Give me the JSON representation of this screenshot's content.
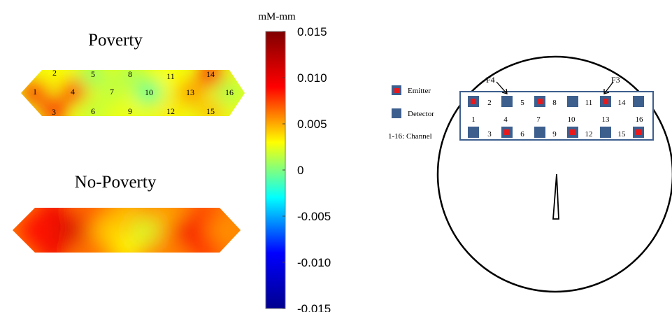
{
  "colors": {
    "emitter_fill": "#e8191c",
    "detector_fill": "#3d5f8e",
    "montage_border": "#3d5f8e",
    "head_outline": "#000000"
  },
  "maps": {
    "poverty": {
      "title": "Poverty",
      "channels": [
        {
          "label": "1",
          "value": 0.008
        },
        {
          "label": "2",
          "value": 0.003
        },
        {
          "label": "3",
          "value": 0.008
        },
        {
          "label": "4",
          "value": 0.0075
        },
        {
          "label": "5",
          "value": 0.0005
        },
        {
          "label": "6",
          "value": 0.0015
        },
        {
          "label": "7",
          "value": 0.0015
        },
        {
          "label": "8",
          "value": 0.001
        },
        {
          "label": "9",
          "value": 0.0025
        },
        {
          "label": "10",
          "value": -0.001
        },
        {
          "label": "11",
          "value": 0.003
        },
        {
          "label": "12",
          "value": 0.0035
        },
        {
          "label": "13",
          "value": 0.0055
        },
        {
          "label": "14",
          "value": 0.0085
        },
        {
          "label": "15",
          "value": 0.0045
        },
        {
          "label": "16",
          "value": 0.001
        }
      ]
    },
    "no_poverty": {
      "title": "No-Poverty",
      "channels": [
        {
          "label": "1",
          "value": 0.009
        },
        {
          "label": "2",
          "value": 0.0095
        },
        {
          "label": "3",
          "value": 0.0095
        },
        {
          "label": "4",
          "value": 0.011
        },
        {
          "label": "5",
          "value": 0.007
        },
        {
          "label": "6",
          "value": 0.0065
        },
        {
          "label": "7",
          "value": 0.004
        },
        {
          "label": "8",
          "value": 0.0045
        },
        {
          "label": "9",
          "value": 0.003
        },
        {
          "label": "10",
          "value": 0.002
        },
        {
          "label": "11",
          "value": 0.005
        },
        {
          "label": "12",
          "value": 0.006
        },
        {
          "label": "13",
          "value": 0.0095
        },
        {
          "label": "14",
          "value": 0.0075
        },
        {
          "label": "15",
          "value": 0.008
        },
        {
          "label": "16",
          "value": 0.0055
        }
      ]
    }
  },
  "colorbar": {
    "unit": "mM-mm",
    "min": -0.015,
    "max": 0.015,
    "ticks": [
      "0.015",
      "0.010",
      "0.005",
      "0",
      "-0.005",
      "-0.010",
      "-0.015"
    ],
    "colors": [
      "#00008f",
      "#0000ff",
      "#00ffff",
      "#ffff00",
      "#ff0000",
      "#800000"
    ]
  },
  "montage": {
    "legend": {
      "emitter": "Emitter",
      "detector": "Detector",
      "channel": "1-16: Channel"
    },
    "markers": {
      "f4": "F4",
      "f3": "F3"
    },
    "top_row": [
      {
        "type": "emitter"
      },
      {
        "type": "detector"
      },
      {
        "type": "emitter"
      },
      {
        "type": "detector"
      },
      {
        "type": "emitter"
      },
      {
        "type": "detector"
      }
    ],
    "bottom_row": [
      {
        "type": "detector"
      },
      {
        "type": "emitter"
      },
      {
        "type": "detector"
      },
      {
        "type": "emitter"
      },
      {
        "type": "detector"
      },
      {
        "type": "emitter"
      }
    ],
    "top_channel_labels": [
      "2",
      "5",
      "8",
      "11",
      "14"
    ],
    "middle_channel_labels": [
      "1",
      "4",
      "7",
      "10",
      "13",
      "16"
    ],
    "bottom_channel_labels": [
      "3",
      "6",
      "9",
      "12",
      "15"
    ]
  }
}
